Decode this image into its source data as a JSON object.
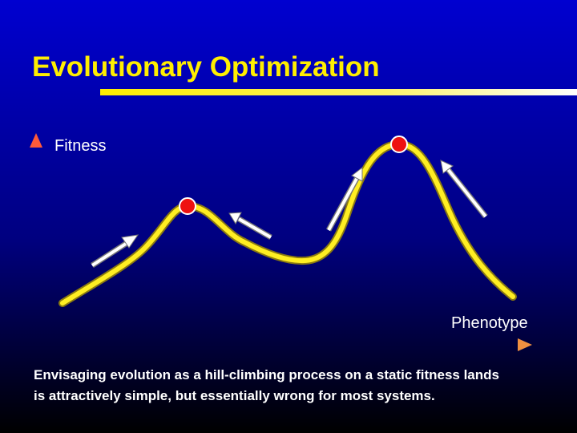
{
  "header": {
    "title": "Evolutionary Optimization"
  },
  "diagram": {
    "y_axis_label": "Fitness",
    "x_axis_label": "Phenotype"
  },
  "caption": {
    "lines": [
      "Envisaging evolution as a hill-climbing process on a static fitness lands",
      "is attractively simple, but essentially wrong for most systems."
    ]
  }
}
